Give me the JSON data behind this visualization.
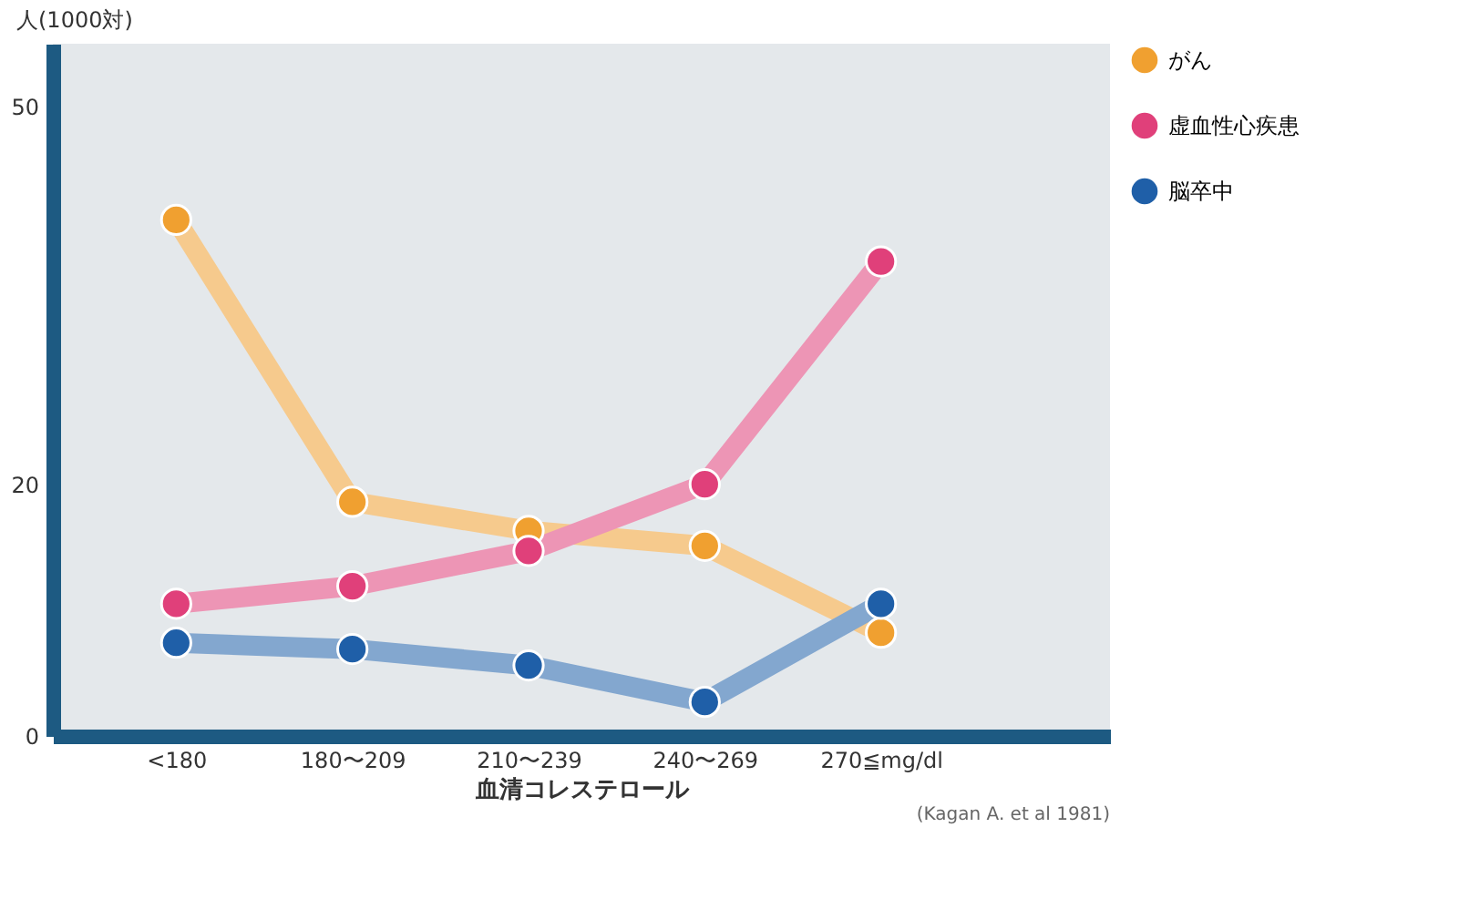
{
  "chart_data": {
    "type": "line",
    "ylabel": "人(1000対)",
    "xlabel": "血清コレステロール",
    "categories": [
      "<180",
      "180〜209",
      "210〜239",
      "240〜269",
      "270≦mg/dl"
    ],
    "series": [
      {
        "name": "がん",
        "color": "#f0a030",
        "values": [
          41,
          18.6,
          16.3,
          15.1,
          8.2
        ]
      },
      {
        "name": "虚血性心疾患",
        "color": "#e0407a",
        "values": [
          10.5,
          11.9,
          14.7,
          20,
          37.7
        ]
      },
      {
        "name": "脳卒中",
        "color": "#1f5fa8",
        "values": [
          7.4,
          6.9,
          5.6,
          2.7,
          10.5
        ]
      }
    ],
    "ylim": [
      0,
      55
    ],
    "yticks": [
      0,
      20,
      50
    ],
    "grid": false,
    "legend": "right",
    "marker": "circle",
    "line_style": "solid",
    "annotations": [
      "(Kagan A. et al 1981)"
    ]
  }
}
